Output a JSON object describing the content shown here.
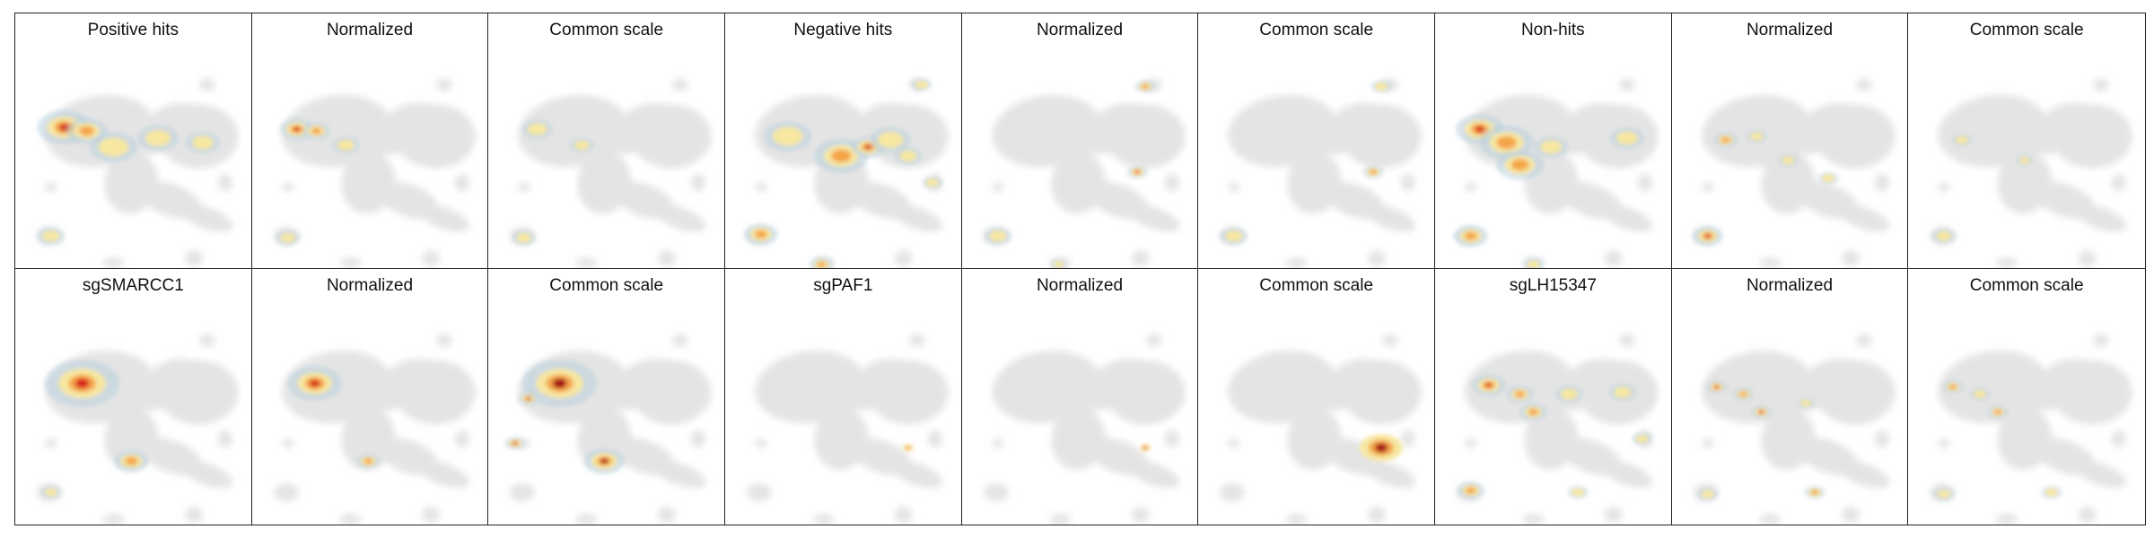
{
  "colors": {
    "base_gray": "#e4e4e4",
    "contour_blue": "#b8cfdd",
    "low": "#f7e7a0",
    "mid": "#f4a54a",
    "high": "#d7261e",
    "saturated": "#a50f15"
  },
  "panels": [
    {
      "title": "Positive hits"
    },
    {
      "title": "Normalized"
    },
    {
      "title": "Common scale"
    },
    {
      "title": "Negative hits"
    },
    {
      "title": "Normalized"
    },
    {
      "title": "Common scale"
    },
    {
      "title": "Non-hits"
    },
    {
      "title": "Normalized"
    },
    {
      "title": "Common scale"
    },
    {
      "title": "sgSMARCC1"
    },
    {
      "title": "Normalized"
    },
    {
      "title": "Common scale"
    },
    {
      "title": "sgPAF1"
    },
    {
      "title": "Normalized"
    },
    {
      "title": "Common scale"
    },
    {
      "title": "sgLH15347"
    },
    {
      "title": "Normalized"
    },
    {
      "title": "Common scale"
    }
  ]
}
